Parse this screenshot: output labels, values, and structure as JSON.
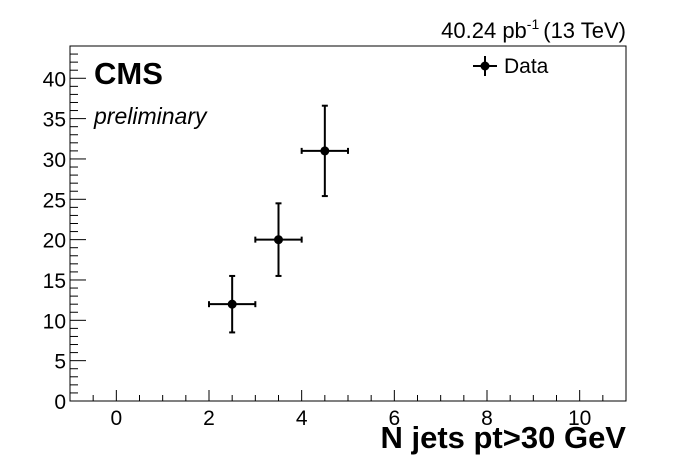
{
  "header": {
    "lumi_value": "40.24 pb",
    "lumi_exp": "-1",
    "energy": "(13 TeV)"
  },
  "labels": {
    "experiment": "CMS",
    "status": "preliminary"
  },
  "chart_data": {
    "type": "scatter",
    "title": "",
    "xlabel": "N jets pt>30 GeV",
    "ylabel": "",
    "xlim": [
      -1,
      11
    ],
    "ylim": [
      0,
      44
    ],
    "x_ticks": [
      0,
      2,
      4,
      6,
      8,
      10
    ],
    "y_ticks": [
      0,
      5,
      10,
      15,
      20,
      25,
      30,
      35,
      40
    ],
    "legend_position": "top-right",
    "series": [
      {
        "name": "Data",
        "color": "#000000",
        "points": [
          {
            "x": 2.5,
            "y": 12,
            "xerr": 0.5,
            "yerr": 3.5
          },
          {
            "x": 3.5,
            "y": 20,
            "xerr": 0.5,
            "yerr": 4.5
          },
          {
            "x": 4.5,
            "y": 31,
            "xerr": 0.5,
            "yerr": 5.6
          }
        ]
      }
    ]
  }
}
